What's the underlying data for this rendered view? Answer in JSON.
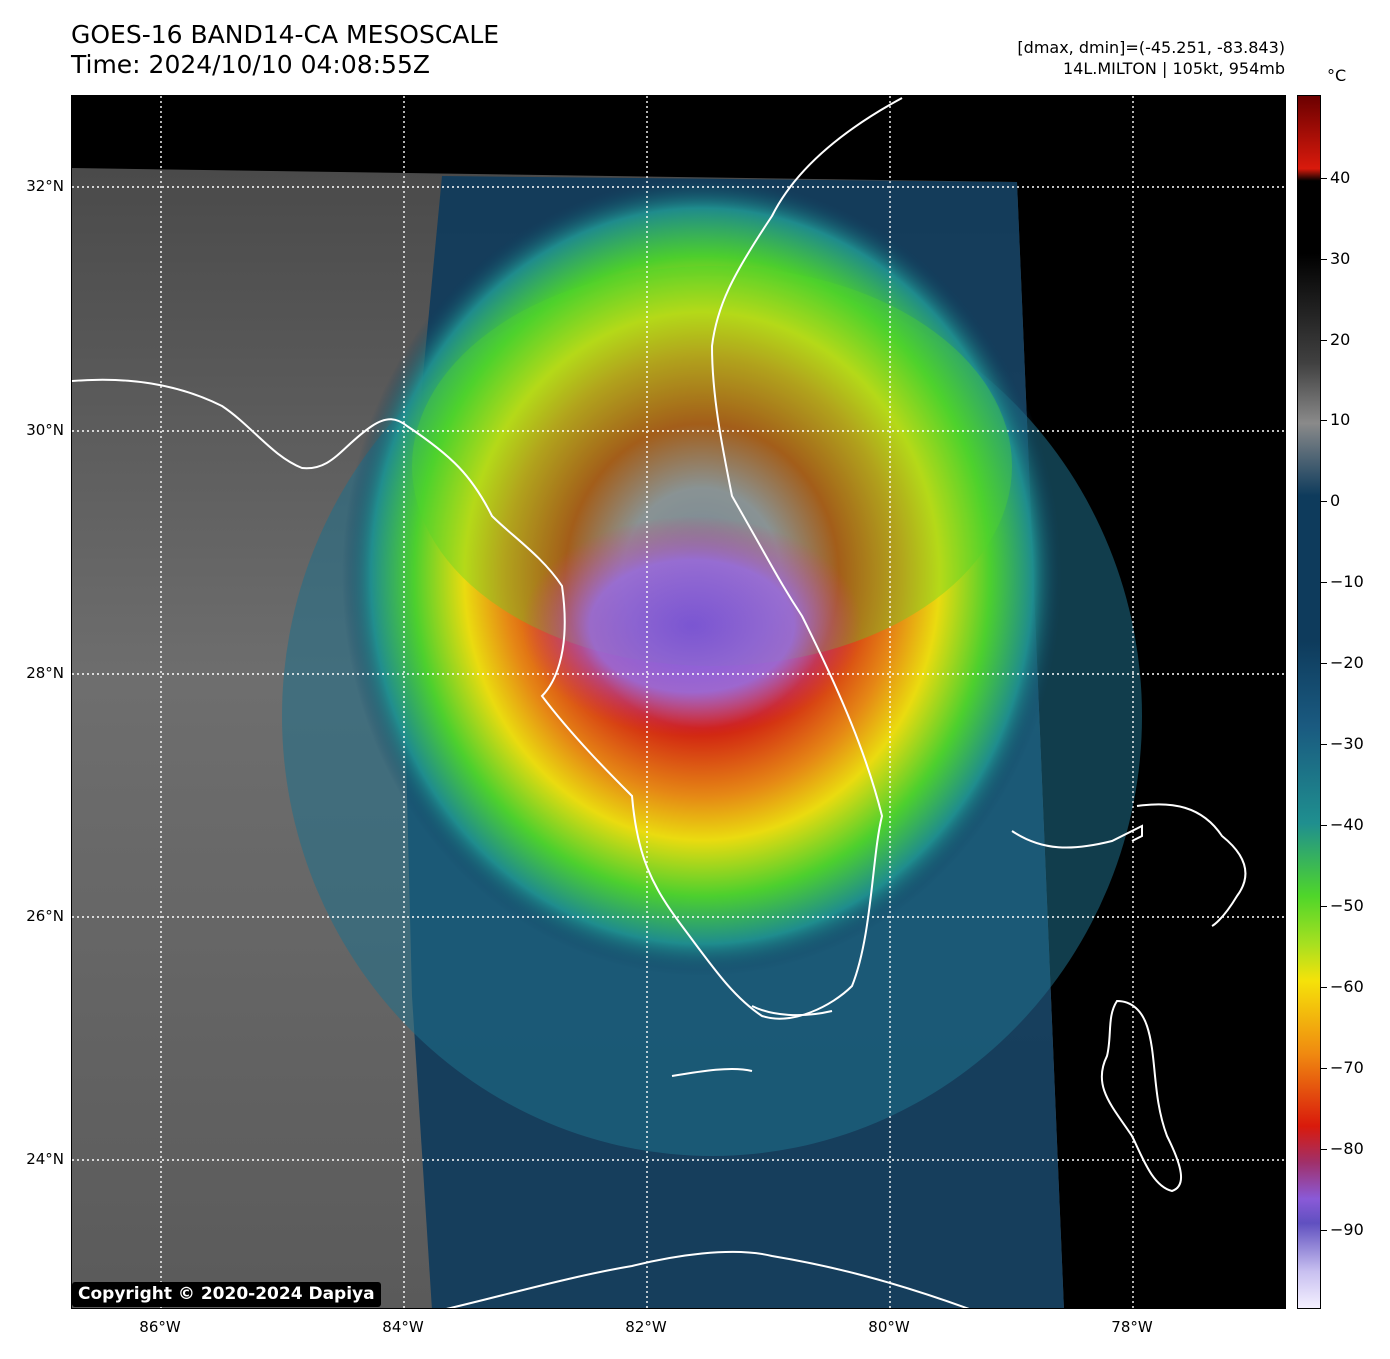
{
  "header": {
    "title_line1": "GOES-16 BAND14-CA MESOSCALE",
    "title_line2": "Time: 2024/10/10 04:08:55Z",
    "stats_line": "[dmax, dmin]=(-45.251, -83.843)",
    "storm_line": "14L.MILTON | 105kt, 954mb"
  },
  "map": {
    "lat_labels": [
      "32°N",
      "30°N",
      "28°N",
      "26°N",
      "24°N"
    ],
    "lon_labels": [
      "86°W",
      "84°W",
      "82°W",
      "80°W",
      "78°W"
    ],
    "gridlines": "dotted",
    "coastline_color": "#ffffff"
  },
  "copyright": "Copyright © 2020-2024 Dapiya",
  "colorbar": {
    "unit": "°C",
    "tick_labels": [
      "40",
      "30",
      "20",
      "10",
      "0",
      "−10",
      "−20",
      "−30",
      "−40",
      "−50",
      "−60",
      "−70",
      "−80",
      "−90"
    ],
    "colors": {
      "warm": "#000000",
      "mid": "#8a8a8a",
      "cool": "#0e3b5c",
      "teal": "#1f8f8f",
      "green": "#4fd62a",
      "yellow": "#f5e20a",
      "orange": "#f08a10",
      "red": "#d91a0c",
      "purple": "#8a5ad8",
      "pale": "#f4f0ff",
      "hot": "#6b0000"
    }
  }
}
